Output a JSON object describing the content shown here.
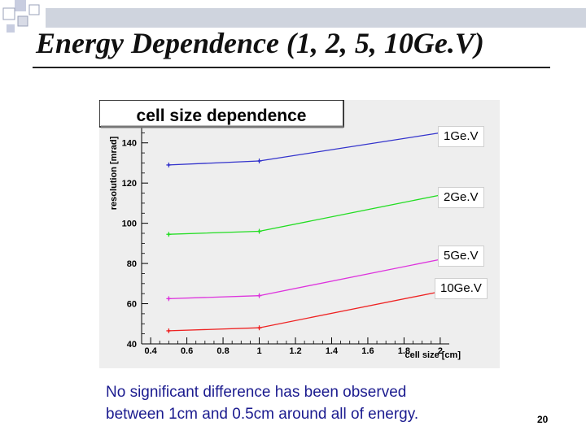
{
  "slide": {
    "title": "Energy Dependence (1, 2, 5, 10Ge.V)",
    "caption_lines": [
      "No significant difference has been observed",
      "between 1cm and 0.5cm around all of energy."
    ],
    "page_number": "20"
  },
  "chart_data": {
    "type": "line",
    "title": "cell size dependence",
    "xlabel": "cell size [cm]",
    "ylabel": "resolution [mrad]",
    "xlim": [
      0.35,
      2.05
    ],
    "ylim": [
      40,
      150
    ],
    "x_ticks": [
      "0.4",
      "0.6",
      "0.8",
      "1",
      "1.2",
      "1.4",
      "1.6",
      "1.8",
      "2"
    ],
    "y_ticks": [
      "40",
      "60",
      "80",
      "100",
      "120",
      "140"
    ],
    "x": [
      0.5,
      1.0,
      2.0
    ],
    "series": [
      {
        "name": "1Ge.V",
        "color": "#3333cc",
        "values": [
          129,
          131,
          145
        ]
      },
      {
        "name": "2Ge.V",
        "color": "#22dd22",
        "values": [
          94.5,
          96,
          114
        ]
      },
      {
        "name": "5Ge.V",
        "color": "#dd33dd",
        "values": [
          62.5,
          64,
          82
        ]
      },
      {
        "name": "10Ge.V",
        "color": "#ee2222",
        "values": [
          46.5,
          48,
          66
        ]
      }
    ],
    "grid": false,
    "legend": "right"
  }
}
